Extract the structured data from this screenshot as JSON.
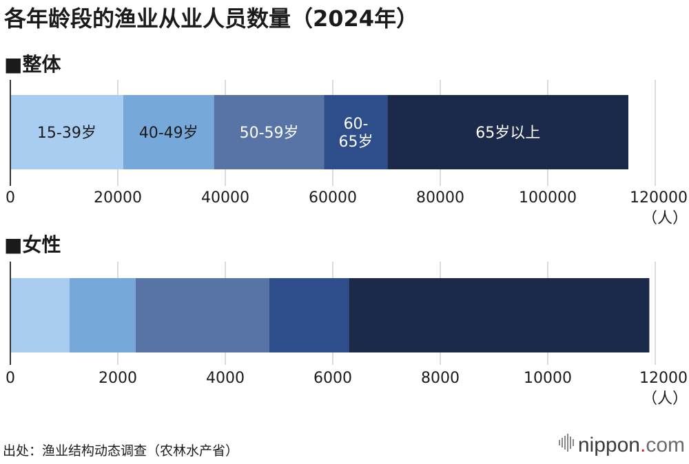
{
  "title": "各年龄段的渔业从业人员数量（2024年）",
  "source": "出处：渔业结构动态调查（农林水产省）",
  "logo": {
    "name": "nippon",
    "dot": ".",
    "suffix": "com"
  },
  "colors": [
    "#a9cdf1",
    "#76a8da",
    "#5873a5",
    "#2e4d8b",
    "#1b2a4a"
  ],
  "chart_data": [
    {
      "type": "bar",
      "orientation": "horizontal",
      "stacked": true,
      "title": "■整体",
      "unit": "（人）",
      "xlim": [
        0,
        120000
      ],
      "xticks": [
        0,
        20000,
        40000,
        60000,
        80000,
        100000,
        120000
      ],
      "grid": true,
      "series": [
        {
          "name": "15-39岁",
          "label_lines": [
            "15-39岁"
          ],
          "value": 21000
        },
        {
          "name": "40-49岁",
          "label_lines": [
            "40-49岁"
          ],
          "value": 16900
        },
        {
          "name": "50-59岁",
          "label_lines": [
            "50-59岁"
          ],
          "value": 20500
        },
        {
          "name": "60-65岁",
          "label_lines": [
            "60-",
            "65岁"
          ],
          "value": 11800
        },
        {
          "name": "65岁以上",
          "label_lines": [
            "65岁以上"
          ],
          "value": 44800
        }
      ]
    },
    {
      "type": "bar",
      "orientation": "horizontal",
      "stacked": true,
      "title": "■女性",
      "unit": "（人）",
      "xlim": [
        0,
        12000
      ],
      "xticks": [
        0,
        2000,
        4000,
        6000,
        8000,
        10000,
        12000
      ],
      "grid": true,
      "series": [
        {
          "name": "15-39岁",
          "value": 1100
        },
        {
          "name": "40-49岁",
          "value": 1230
        },
        {
          "name": "50-59岁",
          "value": 2490
        },
        {
          "name": "60-65岁",
          "value": 1480
        },
        {
          "name": "65岁以上",
          "value": 5590
        }
      ]
    }
  ]
}
